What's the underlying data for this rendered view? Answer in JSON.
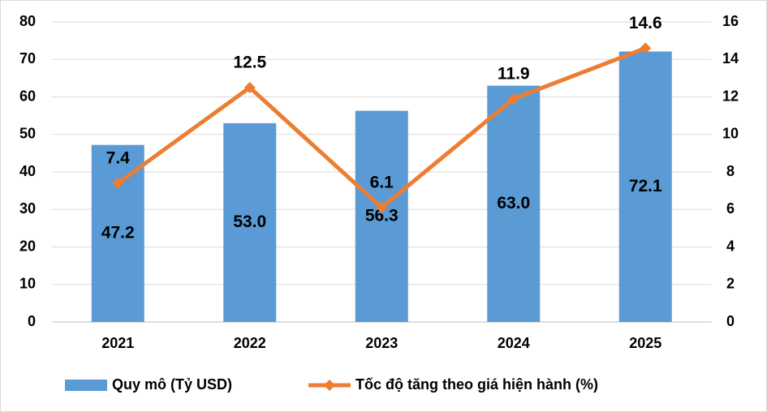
{
  "chart_data": {
    "type": "bar",
    "categories": [
      "2021",
      "2022",
      "2023",
      "2024",
      "2025"
    ],
    "series": [
      {
        "name": "Quy mô (Tỷ USD)",
        "color": "#5b9bd5",
        "values": [
          47.2,
          53.0,
          56.3,
          63.0,
          72.1
        ],
        "value_labels": [
          "47.2",
          "53.0",
          "56.3",
          "63.0",
          "72.1"
        ]
      },
      {
        "name": "Tốc độ tăng theo giá hiện hành (%)",
        "type": "line",
        "axis": "y2",
        "color": "#ed7d31",
        "values": [
          7.4,
          12.5,
          6.1,
          11.9,
          14.6
        ]
      }
    ],
    "ylim": [
      0,
      80
    ],
    "yticks": [
      0,
      10,
      20,
      30,
      40,
      50,
      60,
      70,
      80
    ],
    "y2lim": [
      0,
      16
    ],
    "y2ticks": [
      0,
      2,
      4,
      6,
      8,
      10,
      12,
      14,
      16
    ],
    "grid": true,
    "legend": "bottom"
  }
}
